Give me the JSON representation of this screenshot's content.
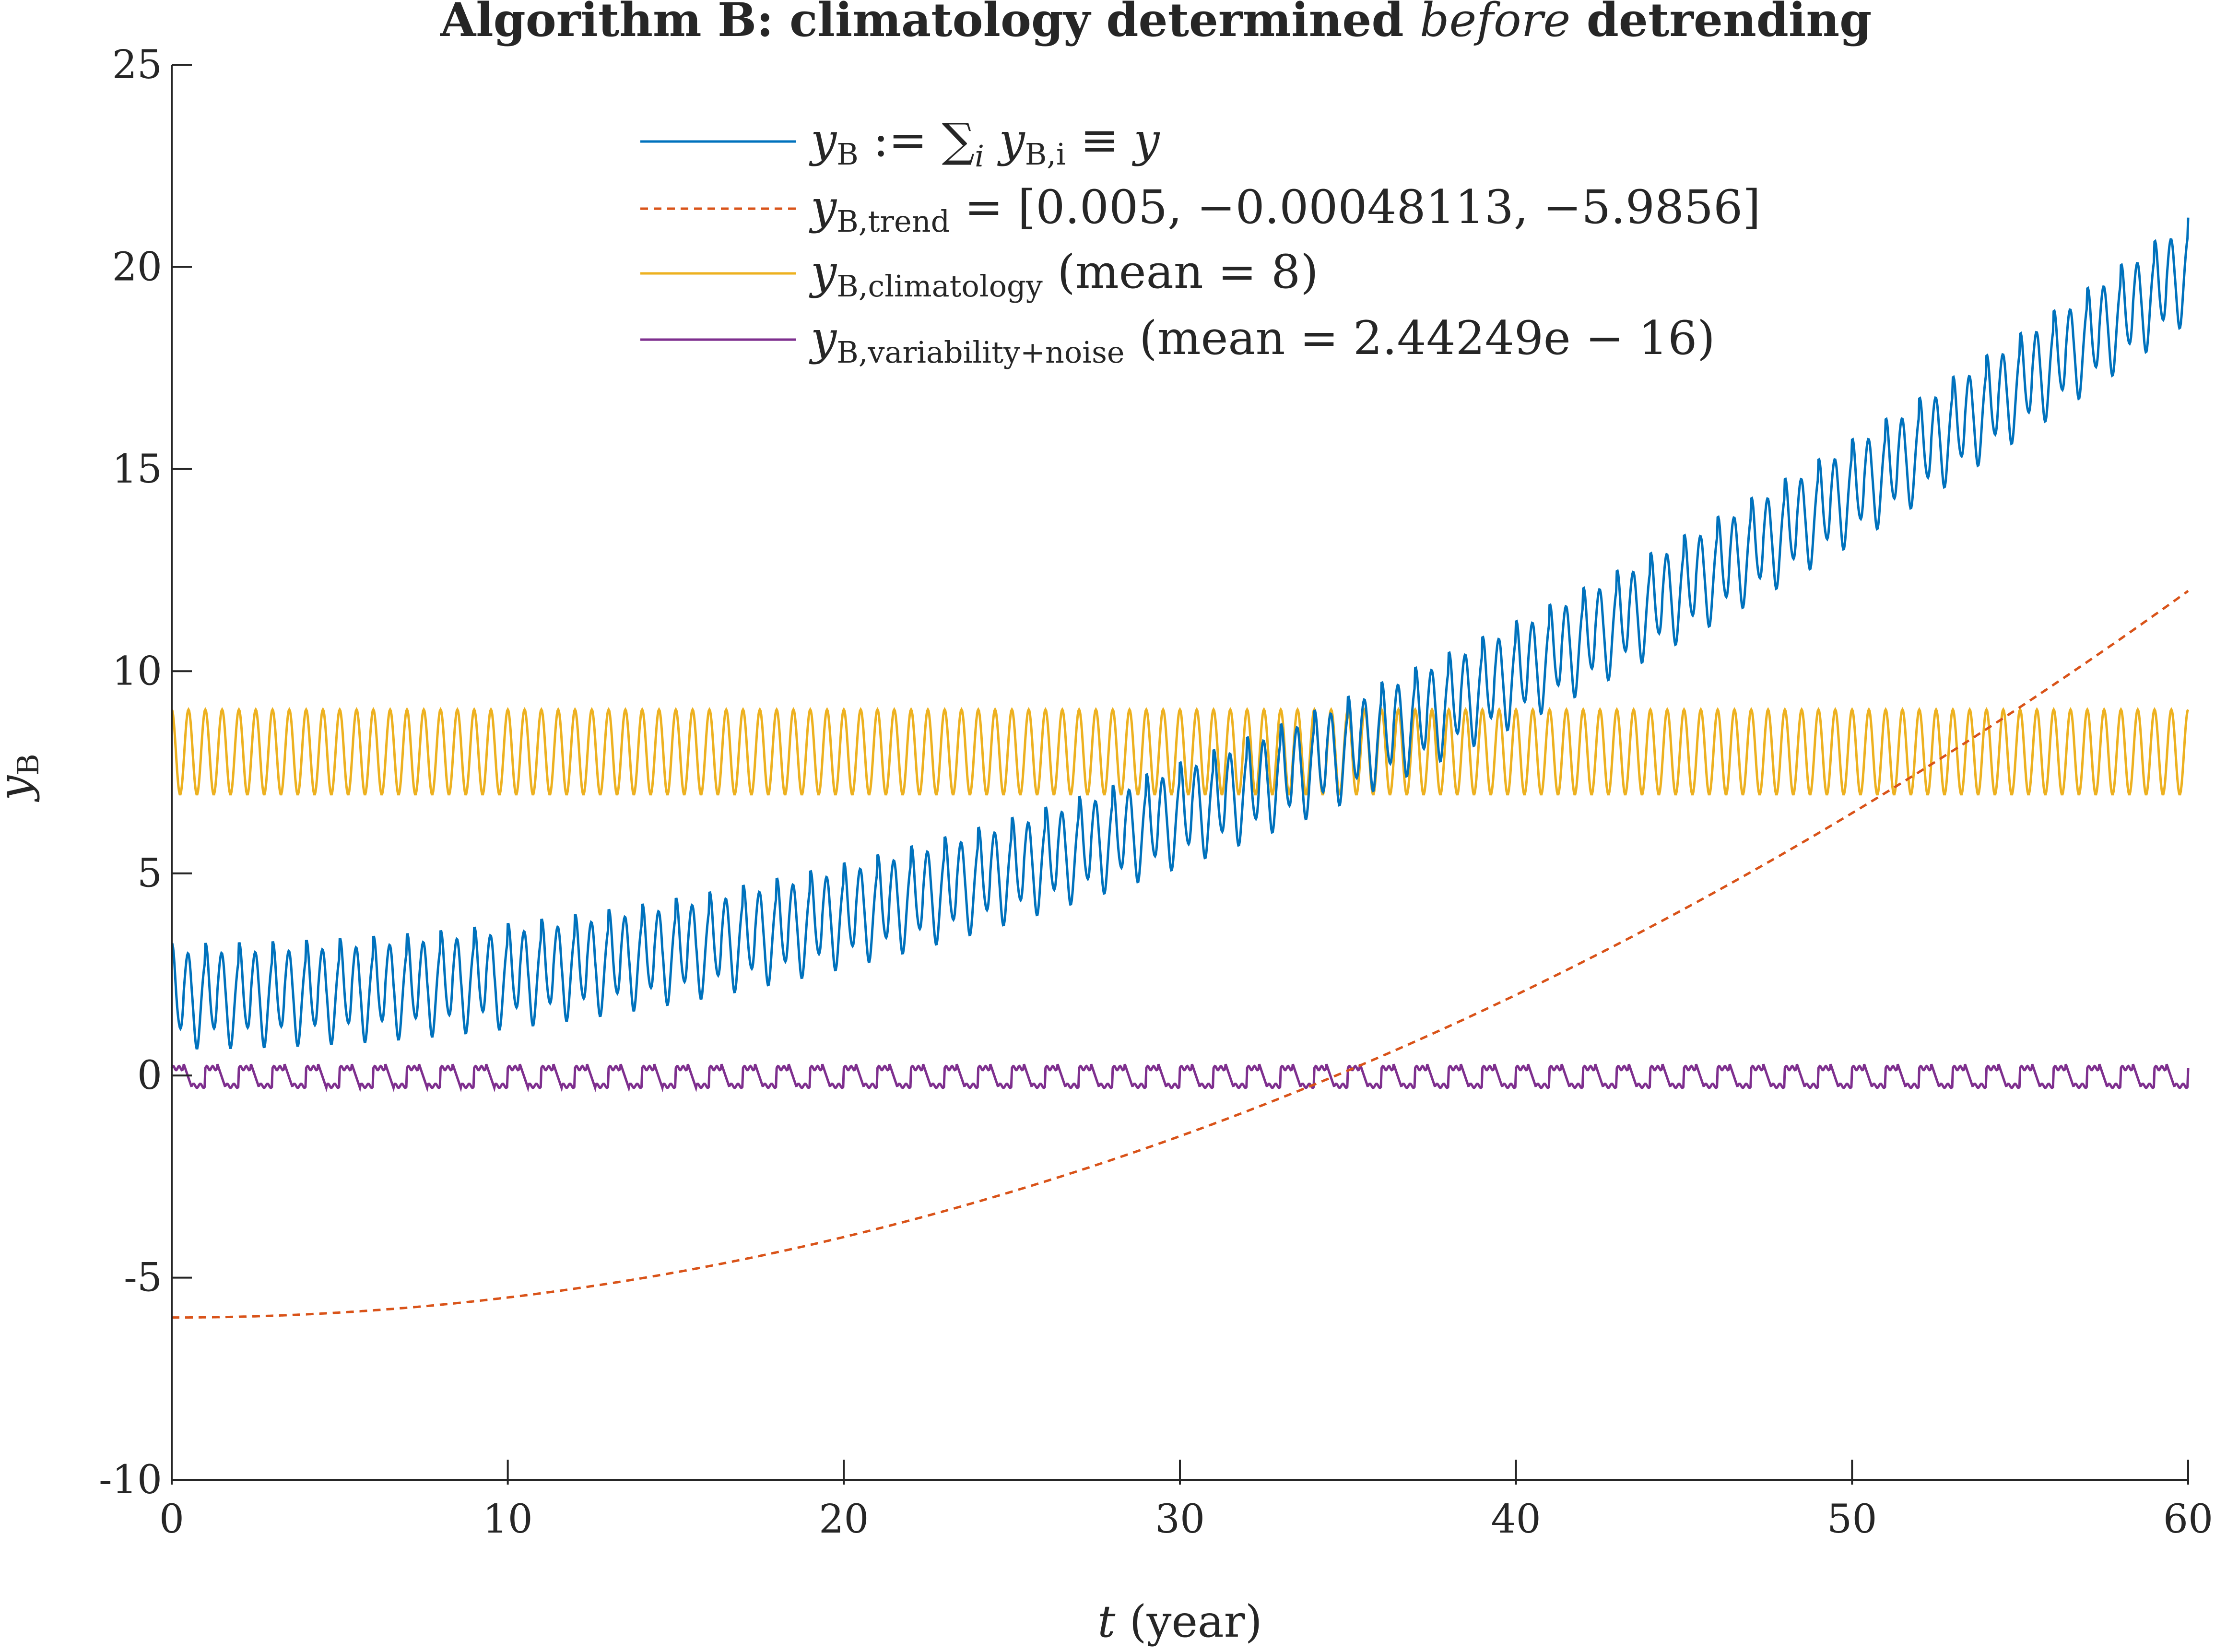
{
  "chart_data": {
    "type": "line",
    "title_parts": {
      "before": "Algorithm B: climatology determined ",
      "italic": "before",
      "after": " detrending"
    },
    "xlabel": {
      "var": "t",
      "unit": " (year)"
    },
    "ylabel": {
      "var": "y",
      "sub": "B"
    },
    "xlim": [
      0,
      60
    ],
    "ylim": [
      -10,
      25
    ],
    "xticks": [
      "0",
      "10",
      "20",
      "30",
      "40",
      "50",
      "60"
    ],
    "yticks": [
      "-10",
      "-5",
      "0",
      "5",
      "10",
      "15",
      "20",
      "25"
    ],
    "grid": false,
    "legend_position": "top-center",
    "series": [
      {
        "key": "y",
        "color": "#0072BD",
        "style": "solid",
        "legend": {
          "main": "y",
          "sub": "B",
          "rest": " := ∑",
          "rest_sub": "i",
          "rest2": " y",
          "rest2_sub": "B,i",
          "tail": " ≡ y"
        },
        "model": {
          "trend": [
            0.005,
            -0.00048113,
            -5.9856
          ],
          "climatology_mean": 8,
          "climatology_amp": 1.05,
          "seasonal_period": 0.5,
          "variability_amp": 0.28,
          "variability_period": 1.0
        }
      },
      {
        "key": "trend",
        "color": "#D95319",
        "style": "dashed",
        "legend": {
          "main": "y",
          "sub": "B,trend",
          "tail": " = [0.005, −0.00048113, −5.9856]"
        },
        "coefficients": [
          0.005,
          -0.00048113,
          -5.9856
        ]
      },
      {
        "key": "climatology",
        "color": "#EDB120",
        "style": "solid",
        "legend": {
          "main": "y",
          "sub": "B,climatology",
          "tail": "  (mean = 8)"
        },
        "mean": 8,
        "range": [
          6.9,
          9.0
        ],
        "period": 0.5
      },
      {
        "key": "variability",
        "color": "#7E2F8E",
        "style": "solid",
        "legend": {
          "main": "y",
          "sub": "B,variability+noise",
          "tail": "  (mean = 2.44249e − 16)"
        },
        "mean": 2.44249e-16,
        "range": [
          -0.35,
          0.32
        ],
        "period": 1.0
      }
    ]
  }
}
